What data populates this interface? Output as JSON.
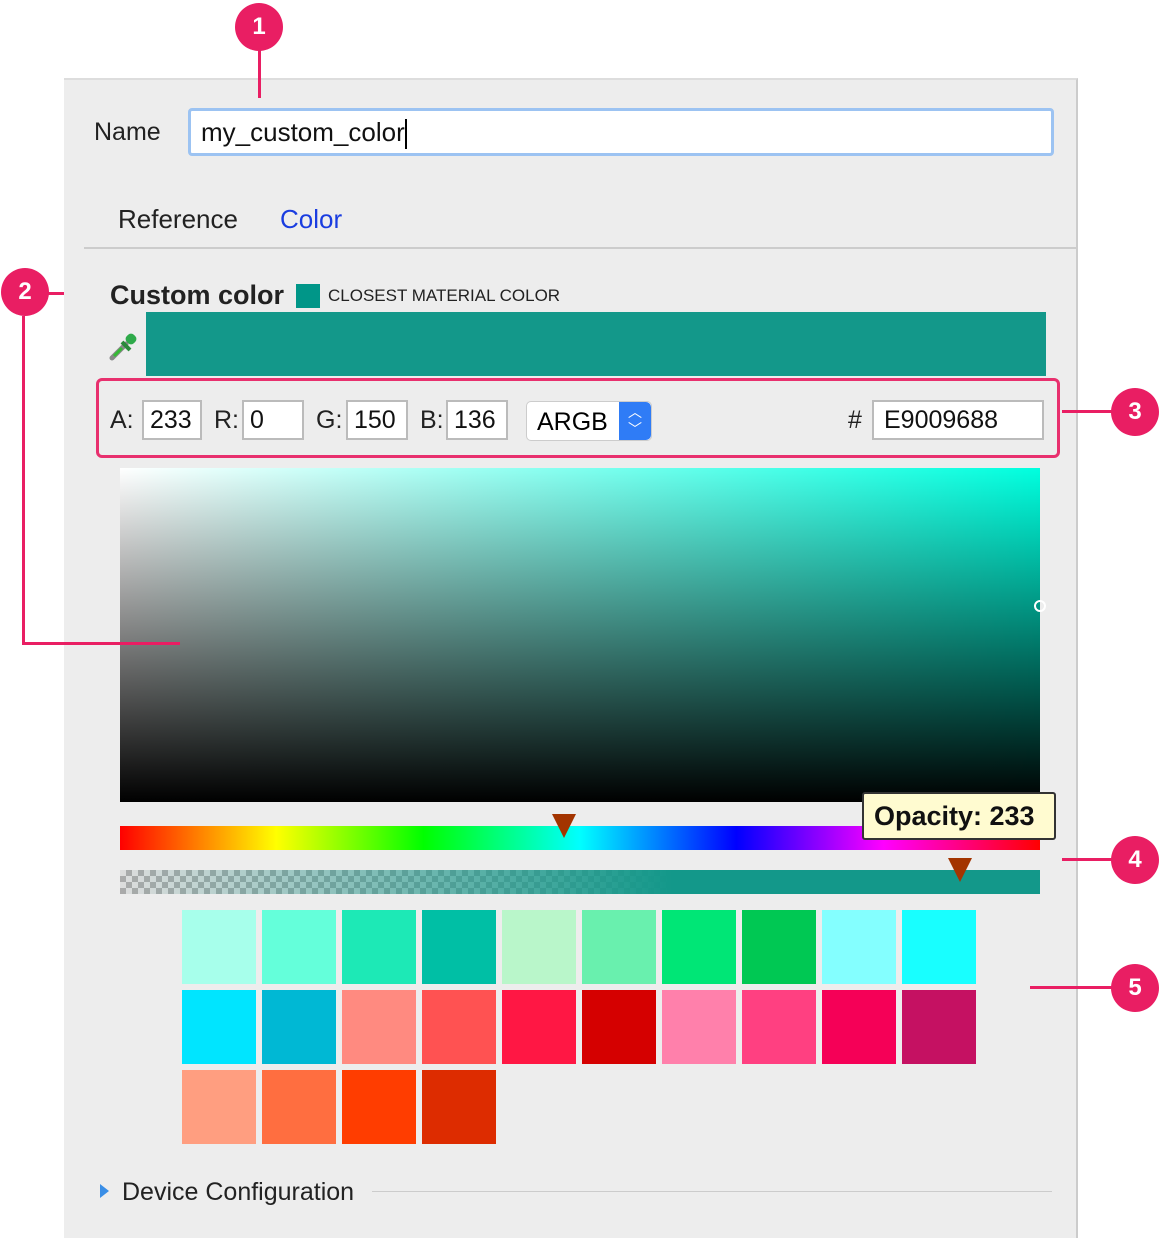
{
  "name": {
    "label": "Name",
    "value": "my_custom_color"
  },
  "tabs": [
    {
      "label": "Reference",
      "active": false
    },
    {
      "label": "Color",
      "active": true
    }
  ],
  "custom_color": {
    "title": "Custom color",
    "closest_label": "CLOSEST MATERIAL COLOR",
    "closest_color": "#009688",
    "preview_color": "#009688"
  },
  "channels": {
    "a_label": "A:",
    "a": "233",
    "r_label": "R:",
    "r": "0",
    "g_label": "G:",
    "g": "150",
    "b_label": "B:",
    "b": "136",
    "mode": "ARGB",
    "hash": "#",
    "hex": "E9009688"
  },
  "hue_picker_percent": 48,
  "opacity": {
    "tooltip": "Opacity: 233",
    "value": 233
  },
  "swatches": [
    "#A7FFEB",
    "#64FFDA",
    "#1DE9B6",
    "#00BFA5",
    "#B9F6CA",
    "#69F0AE",
    "#00E676",
    "#00C853",
    "#84FFFF",
    "#18FFFF",
    "#00E5FF",
    "#00B8D4",
    "#FF8A80",
    "#FF5252",
    "#FF1744",
    "#D50000",
    "#FF80AB",
    "#FF4081",
    "#F50057",
    "#C51162",
    "#FF9E80",
    "#FF6E40",
    "#FF3D00",
    "#DD2C00"
  ],
  "device_configuration": "Device Configuration",
  "callouts": [
    "1",
    "2",
    "3",
    "4",
    "5"
  ],
  "accent": "#E91E63"
}
